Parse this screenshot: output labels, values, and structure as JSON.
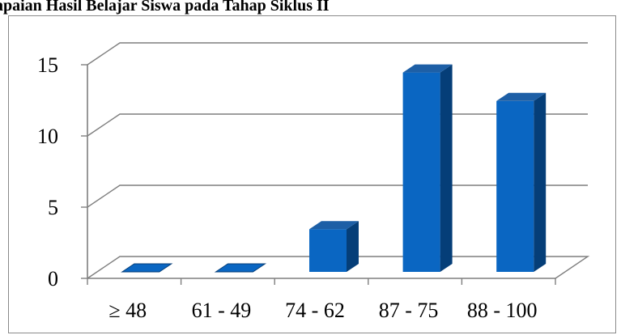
{
  "chart_data": {
    "type": "bar",
    "title": "apaian Hasil Belajar Siswa pada Tahap Siklus II",
    "categories": [
      "≥ 48",
      "61 - 49",
      "74 - 62",
      "87 - 75",
      "88 - 100"
    ],
    "values": [
      0,
      0,
      3,
      14,
      12
    ],
    "yticks": [
      "0",
      "5",
      "10",
      "15"
    ],
    "ylim": [
      0,
      15
    ],
    "xlabel": "",
    "ylabel": "",
    "grid": true,
    "legend": "none",
    "style": "3d-column",
    "colors": {
      "bar_front": "#0a66c2",
      "bar_side": "#053e78",
      "bar_top": "#1d5fa6",
      "grid": "#7f7f7f"
    }
  }
}
